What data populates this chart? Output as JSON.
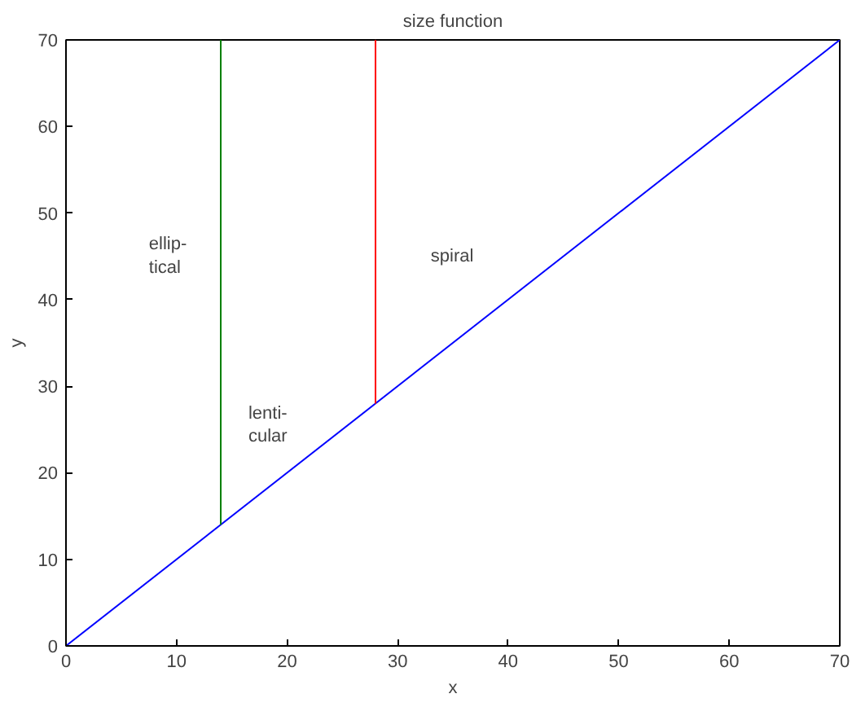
{
  "chart_data": {
    "type": "line",
    "title": "size function",
    "xlabel": "x",
    "ylabel": "y",
    "xlim": [
      0,
      70
    ],
    "ylim": [
      0,
      70
    ],
    "xticks": [
      0,
      10,
      20,
      30,
      40,
      50,
      60,
      70
    ],
    "yticks": [
      0,
      10,
      20,
      30,
      40,
      50,
      60,
      70
    ],
    "grid": false,
    "marker": "none",
    "line_style": "solid",
    "series": [
      {
        "color": "#0000ff",
        "x": [
          0,
          70
        ],
        "values": [
          0,
          70
        ]
      },
      {
        "color": "#008000",
        "x": [
          14,
          14
        ],
        "values": [
          14,
          70
        ]
      },
      {
        "color": "#ff0000",
        "x": [
          28,
          28
        ],
        "values": [
          28,
          70
        ]
      }
    ],
    "annotations": [
      "ellip-\ntical",
      "lenti-\ncular",
      "spiral"
    ]
  }
}
